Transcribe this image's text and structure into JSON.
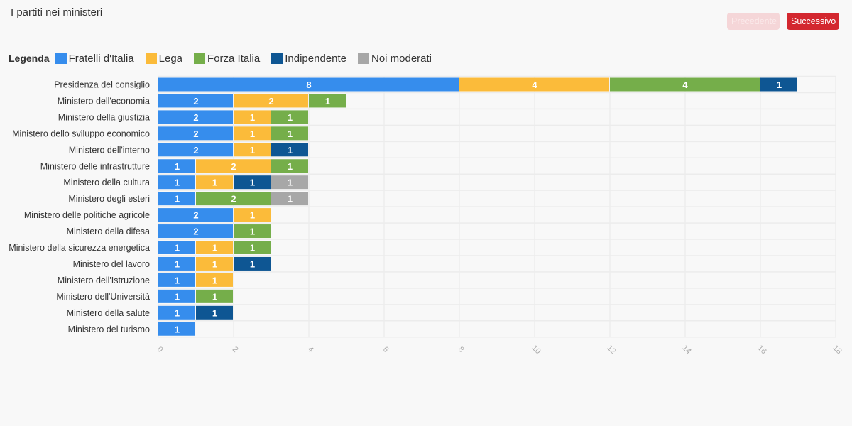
{
  "header": {
    "title": "I partiti nei ministeri",
    "prev_label": "Precedente",
    "next_label": "Successivo"
  },
  "legend": {
    "title": "Legenda"
  },
  "chart_data": {
    "type": "bar",
    "orientation": "horizontal",
    "stacked": true,
    "categories": [
      "Presidenza del consiglio",
      "Ministero dell'economia",
      "Ministero della giustizia",
      "Ministero dello sviluppo economico",
      "Ministero dell'interno",
      "Ministero delle infrastrutture",
      "Ministero della cultura",
      "Ministero degli esteri",
      "Ministero delle politiche agricole",
      "Ministero della difesa",
      "Ministero della sicurezza energetica",
      "Ministero del lavoro",
      "Ministero dell'Istruzione",
      "Ministero dell'Università",
      "Ministero della salute",
      "Ministero del turismo"
    ],
    "series": [
      {
        "name": "Fratelli d'Italia",
        "color": "#368ded",
        "values": [
          8,
          2,
          2,
          2,
          2,
          1,
          1,
          1,
          2,
          2,
          1,
          1,
          1,
          1,
          1,
          1
        ]
      },
      {
        "name": "Lega",
        "color": "#fbbb3a",
        "values": [
          4,
          2,
          1,
          1,
          1,
          2,
          1,
          0,
          1,
          0,
          1,
          1,
          1,
          0,
          0,
          0
        ]
      },
      {
        "name": "Forza Italia",
        "color": "#75ae4a",
        "values": [
          4,
          1,
          1,
          1,
          0,
          1,
          0,
          2,
          0,
          1,
          1,
          0,
          0,
          1,
          0,
          0
        ]
      },
      {
        "name": "Indipendente",
        "color": "#0e5693",
        "values": [
          1,
          0,
          0,
          0,
          1,
          0,
          1,
          0,
          0,
          0,
          0,
          1,
          0,
          0,
          1,
          0
        ]
      },
      {
        "name": "Noi moderati",
        "color": "#a7a7a7",
        "values": [
          0,
          0,
          0,
          0,
          0,
          0,
          1,
          1,
          0,
          0,
          0,
          0,
          0,
          0,
          0,
          0
        ]
      }
    ],
    "xlim": [
      0,
      18
    ],
    "xticks": [
      0,
      2,
      4,
      6,
      8,
      10,
      12,
      14,
      16,
      18
    ],
    "grid": true,
    "legend_position": "top-left"
  }
}
